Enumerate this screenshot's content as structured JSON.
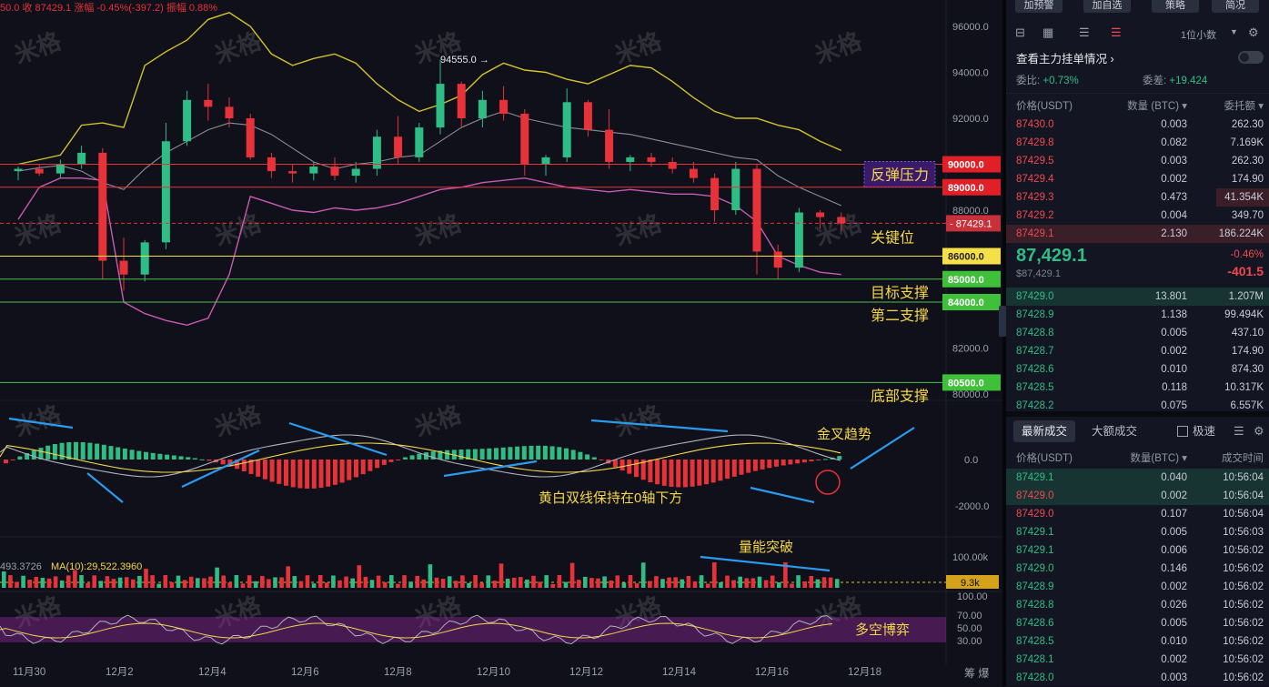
{
  "header": {
    "ohlc_text": "50.0  收 87429.1  涨幅 -0.45%(-397.2)  振幅 0.88%",
    "max_marker": "94555.0 →"
  },
  "watermark": "米格",
  "chart_data": {
    "type": "candlestick",
    "x_ticks": [
      "11月30",
      "12月2",
      "12月4",
      "12月6",
      "12月8",
      "12月10",
      "12月12",
      "12月14",
      "12月16",
      "12月18"
    ],
    "y_ticks": [
      "96000.0",
      "94000.0",
      "92000.0",
      "90000.0",
      "88000.0",
      "86000.0",
      "84000.0",
      "82000.0",
      "80000.0"
    ],
    "ylim": [
      79600,
      96900
    ],
    "bands": {
      "upper": [
        [
          0,
          90000
        ],
        [
          1,
          90200
        ],
        [
          2,
          90400
        ],
        [
          3,
          91700
        ],
        [
          4,
          91800
        ],
        [
          5,
          91600
        ],
        [
          6,
          94300
        ],
        [
          7,
          94900
        ],
        [
          8,
          95400
        ],
        [
          9,
          96300
        ],
        [
          10,
          96600
        ],
        [
          11,
          96000
        ],
        [
          12,
          94800
        ],
        [
          13,
          94300
        ],
        [
          14,
          94600
        ],
        [
          15,
          94800
        ],
        [
          16,
          94400
        ],
        [
          17,
          93500
        ],
        [
          18,
          92800
        ],
        [
          19,
          92300
        ],
        [
          20,
          92600
        ],
        [
          21,
          93000
        ],
        [
          22,
          93900
        ],
        [
          23,
          94400
        ],
        [
          24,
          94100
        ],
        [
          25,
          94000
        ],
        [
          26,
          93700
        ],
        [
          27,
          93500
        ],
        [
          28,
          93900
        ],
        [
          29,
          94300
        ],
        [
          30,
          94200
        ],
        [
          31,
          93600
        ],
        [
          32,
          92900
        ],
        [
          33,
          92300
        ],
        [
          34,
          92000
        ],
        [
          35,
          92000
        ],
        [
          36,
          91700
        ],
        [
          37,
          91500
        ],
        [
          38,
          91000
        ],
        [
          39,
          90600
        ]
      ],
      "middle": [
        [
          0,
          89700
        ],
        [
          1,
          89850
        ],
        [
          2,
          89950
        ],
        [
          3,
          89700
        ],
        [
          4,
          89200
        ],
        [
          5,
          88900
        ],
        [
          6,
          89800
        ],
        [
          7,
          90500
        ],
        [
          8,
          91000
        ],
        [
          9,
          91500
        ],
        [
          10,
          91800
        ],
        [
          11,
          91700
        ],
        [
          12,
          91300
        ],
        [
          13,
          90700
        ],
        [
          14,
          90100
        ],
        [
          15,
          89800
        ],
        [
          16,
          90000
        ],
        [
          17,
          90100
        ],
        [
          18,
          90300
        ],
        [
          19,
          90400
        ],
        [
          20,
          91000
        ],
        [
          21,
          91600
        ],
        [
          22,
          92000
        ],
        [
          23,
          92300
        ],
        [
          24,
          92000
        ],
        [
          25,
          91800
        ],
        [
          26,
          91600
        ],
        [
          27,
          91500
        ],
        [
          28,
          91400
        ],
        [
          29,
          91300
        ],
        [
          30,
          91100
        ],
        [
          31,
          90900
        ],
        [
          32,
          90700
        ],
        [
          33,
          90500
        ],
        [
          34,
          90300
        ],
        [
          35,
          90200
        ],
        [
          36,
          89500
        ],
        [
          37,
          89000
        ],
        [
          38,
          88600
        ],
        [
          39,
          88200
        ]
      ],
      "lower": [
        [
          0,
          87600
        ],
        [
          1,
          89000
        ],
        [
          2,
          89400
        ],
        [
          3,
          89400
        ],
        [
          4,
          89300
        ],
        [
          5,
          84000
        ],
        [
          6,
          83500
        ],
        [
          7,
          83200
        ],
        [
          8,
          83000
        ],
        [
          9,
          83300
        ],
        [
          10,
          85200
        ],
        [
          11,
          88600
        ],
        [
          12,
          88300
        ],
        [
          13,
          88000
        ],
        [
          14,
          87900
        ],
        [
          15,
          88100
        ],
        [
          16,
          88000
        ],
        [
          17,
          88100
        ],
        [
          18,
          88300
        ],
        [
          19,
          88600
        ],
        [
          20,
          88900
        ],
        [
          21,
          89000
        ],
        [
          22,
          89200
        ],
        [
          23,
          89300
        ],
        [
          24,
          89400
        ],
        [
          25,
          89200
        ],
        [
          26,
          89000
        ],
        [
          27,
          88900
        ],
        [
          28,
          88800
        ],
        [
          29,
          88900
        ],
        [
          30,
          88800
        ],
        [
          31,
          88700
        ],
        [
          32,
          88700
        ],
        [
          33,
          88600
        ],
        [
          34,
          88200
        ],
        [
          35,
          87500
        ],
        [
          36,
          86000
        ],
        [
          37,
          85600
        ],
        [
          38,
          85300
        ],
        [
          39,
          85200
        ]
      ]
    },
    "candles": [
      [
        0,
        89700,
        89900,
        89300,
        89800
      ],
      [
        1,
        89800,
        90000,
        89500,
        89600
      ],
      [
        2,
        89600,
        90200,
        89400,
        90000
      ],
      [
        3,
        90000,
        90800,
        89800,
        90500
      ],
      [
        4,
        90500,
        90700,
        85000,
        85800
      ],
      [
        5,
        85800,
        86800,
        84500,
        85200
      ],
      [
        6,
        85200,
        86700,
        84900,
        86600
      ],
      [
        7,
        86600,
        91800,
        86300,
        91000
      ],
      [
        8,
        91000,
        93200,
        90800,
        92800
      ],
      [
        9,
        92800,
        93500,
        91900,
        92500
      ],
      [
        10,
        92500,
        92900,
        91600,
        92000
      ],
      [
        11,
        92000,
        92200,
        90200,
        90300
      ],
      [
        12,
        90300,
        90500,
        89400,
        89700
      ],
      [
        13,
        89700,
        90000,
        89200,
        89600
      ],
      [
        14,
        89600,
        90100,
        89300,
        89900
      ],
      [
        15,
        89900,
        90300,
        89300,
        89500
      ],
      [
        16,
        89500,
        90100,
        89200,
        89800
      ],
      [
        17,
        89800,
        91500,
        89500,
        91200
      ],
      [
        18,
        91200,
        92100,
        90000,
        90300
      ],
      [
        19,
        90300,
        91800,
        90100,
        91600
      ],
      [
        20,
        91600,
        94555,
        91300,
        93500
      ],
      [
        21,
        93500,
        93600,
        91600,
        92000
      ],
      [
        22,
        92000,
        93200,
        91600,
        92800
      ],
      [
        23,
        92800,
        93400,
        91900,
        92200
      ],
      [
        24,
        92200,
        92400,
        89500,
        90000
      ],
      [
        25,
        90000,
        90400,
        89500,
        90300
      ],
      [
        26,
        90300,
        93300,
        90100,
        92700
      ],
      [
        27,
        92700,
        92800,
        91200,
        91500
      ],
      [
        28,
        91500,
        92400,
        89800,
        90100
      ],
      [
        29,
        90100,
        90400,
        89700,
        90300
      ],
      [
        30,
        90300,
        90500,
        89900,
        90100
      ],
      [
        31,
        90100,
        90300,
        89600,
        89800
      ],
      [
        32,
        89800,
        90100,
        89200,
        89400
      ],
      [
        33,
        89400,
        89600,
        87500,
        88000
      ],
      [
        34,
        88000,
        90100,
        87800,
        89800
      ],
      [
        35,
        89800,
        90000,
        85200,
        86200
      ],
      [
        36,
        86200,
        86500,
        85000,
        85500
      ],
      [
        37,
        85500,
        88100,
        85300,
        87900
      ],
      [
        38,
        87900,
        88000,
        87200,
        87700
      ],
      [
        39,
        87700,
        87900,
        87100,
        87429
      ]
    ],
    "current_price_label": "87429.1",
    "levels": [
      {
        "price": 90000,
        "label": "90000.0",
        "color": "#e8323a",
        "text": "反弹压力"
      },
      {
        "price": 89000,
        "label": "89000.0",
        "color": "#e8323a",
        "text": ""
      },
      {
        "price": 86000,
        "label": "86000.0",
        "color": "#f5e04a",
        "text": "关键位"
      },
      {
        "price": 85000,
        "label": "85000.0",
        "color": "#4bc04f",
        "text": "目标支撑"
      },
      {
        "price": 84000,
        "label": "84000.0",
        "color": "#4bc04f",
        "text": "第二支撑"
      },
      {
        "price": 80500,
        "label": "80500.0",
        "color": "#4bc04f",
        "text": "底部支撑"
      }
    ],
    "macd": {
      "y_ticks": [
        "0.0",
        "-2000.0"
      ],
      "annotations": [
        "金叉趋势",
        "黄白双线保持在0轴下方"
      ]
    },
    "volume": {
      "header_text": "493.3726",
      "ma_label": "MA(10):29,522.3960",
      "y_tick": "100.00k",
      "current_label": "9.3k",
      "annotation": "量能突破"
    },
    "rsi": {
      "y_ticks": [
        "100.00",
        "70.00",
        "50.00",
        "30.00"
      ],
      "annotation": "多空博弈"
    },
    "corner_label": "筹 爆"
  },
  "panel": {
    "top_buttons": [
      "加预警",
      "加自选",
      "策略",
      "简况"
    ],
    "orderbook_title": "查看主力挂单情况 ›",
    "precision": "1位小数",
    "weibi_label": "委比:",
    "weibi_value": "+0.73%",
    "weicha_label": "委差:",
    "weicha_value": "+19.424",
    "headers": [
      "价格(USDT)",
      "数量 (BTC) ▾",
      "委托额 ▾"
    ],
    "asks": [
      [
        "87430.0",
        "0.003",
        "262.30"
      ],
      [
        "87429.8",
        "0.082",
        "7.169K"
      ],
      [
        "87429.5",
        "0.003",
        "262.30"
      ],
      [
        "87429.4",
        "0.002",
        "174.90"
      ],
      [
        "87429.3",
        "0.473",
        "41.354K"
      ],
      [
        "87429.2",
        "0.004",
        "349.70"
      ],
      [
        "87429.1",
        "2.130",
        "186.224K"
      ]
    ],
    "last_price": "87,429.1",
    "last_price_usd": "$87,429.1",
    "change_pct": "-0.46%",
    "change_abs": "-401.5",
    "bids": [
      [
        "87429.0",
        "13.801",
        "1.207M"
      ],
      [
        "87428.9",
        "1.138",
        "99.494K"
      ],
      [
        "87428.8",
        "0.005",
        "437.10"
      ],
      [
        "87428.7",
        "0.002",
        "174.90"
      ],
      [
        "87428.6",
        "0.010",
        "874.30"
      ],
      [
        "87428.5",
        "0.118",
        "10.317K"
      ],
      [
        "87428.2",
        "0.075",
        "6.557K"
      ]
    ],
    "tabs": [
      "最新成交",
      "大额成交",
      "极速"
    ],
    "trade_headers": [
      "价格(USDT)",
      "数量(BTC) ▾",
      "成交时间"
    ],
    "trades": [
      [
        "87429.1",
        "0.040",
        "10:56:04",
        "green"
      ],
      [
        "87429.0",
        "0.002",
        "10:56:04",
        "red"
      ],
      [
        "87429.0",
        "0.107",
        "10:56:04",
        "red"
      ],
      [
        "87429.1",
        "0.005",
        "10:56:03",
        "green"
      ],
      [
        "87429.1",
        "0.006",
        "10:56:02",
        "green"
      ],
      [
        "87429.0",
        "0.146",
        "10:56:02",
        "green"
      ],
      [
        "87428.9",
        "0.002",
        "10:56:02",
        "green"
      ],
      [
        "87428.8",
        "0.026",
        "10:56:02",
        "green"
      ],
      [
        "87428.6",
        "0.005",
        "10:56:02",
        "green"
      ],
      [
        "87428.5",
        "0.010",
        "10:56:02",
        "green"
      ],
      [
        "87428.1",
        "0.002",
        "10:56:02",
        "green"
      ],
      [
        "87428.0",
        "0.003",
        "10:56:02",
        "green"
      ]
    ]
  }
}
